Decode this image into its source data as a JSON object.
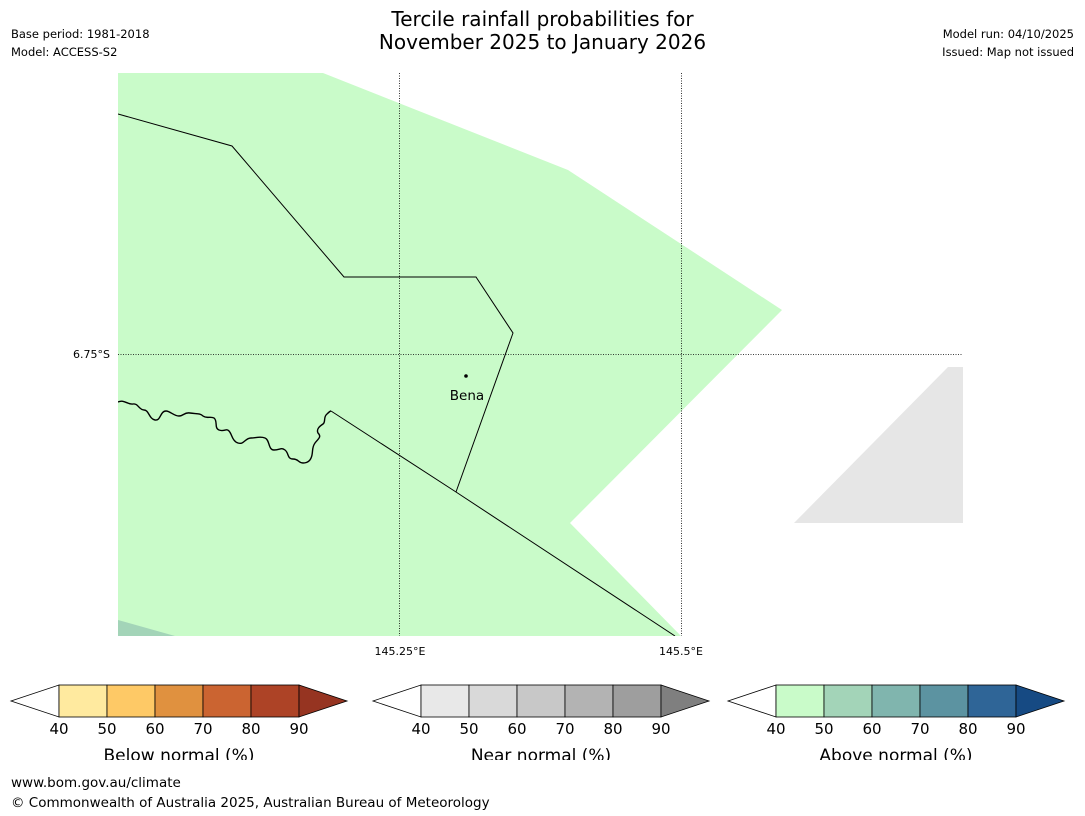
{
  "header": {
    "title_line1": "Tercile rainfall probabilities for",
    "title_line2": "November 2025 to January 2026",
    "base_period": "Base period: 1981-2018",
    "model": "Model: ACCESS-S2",
    "model_run": "Model run: 04/10/2025",
    "issued": "Issued: Map not issued"
  },
  "map": {
    "lat_labels": [
      "6.75°S"
    ],
    "lon_labels": [
      "145.25°E",
      "145.5°E"
    ],
    "places": [
      {
        "name": "Bena"
      }
    ],
    "colors": {
      "above_40_50": "#c9fbc9",
      "above_50_60": "#a3d4b8",
      "near_40_50": "#e6e6e6",
      "background": "#ffffff"
    }
  },
  "legends": [
    {
      "title": "Below normal (%)",
      "ticks": [
        "40",
        "50",
        "60",
        "70",
        "80",
        "90"
      ],
      "colors": [
        "#ffffff",
        "#ffea9f",
        "#fec966",
        "#e0913f",
        "#cb6431",
        "#ad4326",
        "#963421"
      ]
    },
    {
      "title": "Near normal (%)",
      "ticks": [
        "40",
        "50",
        "60",
        "70",
        "80",
        "90"
      ],
      "colors": [
        "#ffffff",
        "#e8e8e8",
        "#d9d9d9",
        "#c8c8c8",
        "#b3b3b3",
        "#9e9e9e",
        "#7f7f7f"
      ]
    },
    {
      "title": "Above normal (%)",
      "ticks": [
        "40",
        "50",
        "60",
        "70",
        "80",
        "90"
      ],
      "colors": [
        "#ffffff",
        "#c9fbc9",
        "#a3d4b8",
        "#80b5ae",
        "#5c93a1",
        "#2f6597",
        "#164a83"
      ]
    }
  ],
  "footer": {
    "url": "www.bom.gov.au/climate",
    "copyright": "© Commonwealth of Australia 2025, Australian Bureau of Meteorology"
  }
}
